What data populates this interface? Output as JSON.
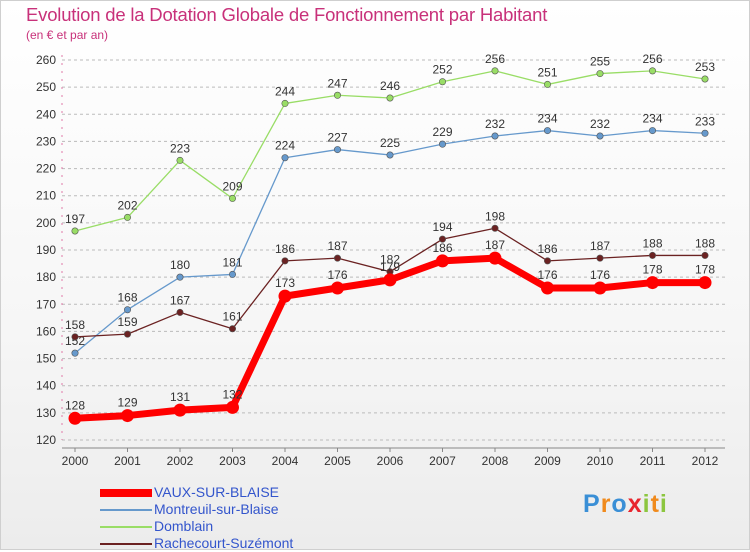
{
  "header": {
    "title": "Evolution de la Dotation Globale de Fonctionnement par Habitant",
    "subtitle": "(en € et par an)"
  },
  "chart_data": {
    "type": "line",
    "title": "Evolution de la Dotation Globale de Fonctionnement par Habitant",
    "subtitle": "(en € et par an)",
    "xlabel": "",
    "ylabel": "",
    "ylim": [
      120,
      260
    ],
    "yticks": [
      120,
      130,
      140,
      150,
      160,
      170,
      180,
      190,
      200,
      210,
      220,
      230,
      240,
      250,
      260
    ],
    "x": [
      "2000",
      "2001",
      "2002",
      "2003",
      "2004",
      "2005",
      "2006",
      "2007",
      "2008",
      "2009",
      "2010",
      "2011",
      "2012"
    ],
    "grid": "horizontal dashed",
    "legend_position": "bottom-left",
    "series": [
      {
        "name": "VAUX-SUR-BLAISE",
        "color": "#ff0000",
        "values": [
          128,
          129,
          131,
          132,
          173,
          176,
          179,
          186,
          187,
          176,
          176,
          178,
          178
        ]
      },
      {
        "name": "Montreuil-sur-Blaise",
        "color": "#6699cc",
        "values": [
          152,
          168,
          180,
          181,
          224,
          227,
          225,
          229,
          232,
          234,
          232,
          234,
          233
        ]
      },
      {
        "name": "Domblain",
        "color": "#99dd66",
        "values": [
          197,
          202,
          223,
          209,
          244,
          247,
          246,
          252,
          256,
          251,
          255,
          256,
          253
        ]
      },
      {
        "name": "Rachecourt-Suzémont",
        "color": "#6b2222",
        "values": [
          158,
          159,
          167,
          161,
          186,
          187,
          182,
          194,
          198,
          186,
          187,
          188,
          188
        ]
      }
    ]
  },
  "legend": {
    "items": [
      {
        "label": "VAUX-SUR-BLAISE",
        "color": "#ff0000"
      },
      {
        "label": "Montreuil-sur-Blaise",
        "color": "#6699cc"
      },
      {
        "label": "Domblain",
        "color": "#99dd66"
      },
      {
        "label": "Rachecourt-Suzémont",
        "color": "#6b2222"
      }
    ]
  },
  "logo": {
    "letters": [
      {
        "ch": "P",
        "color": "#3a8fd6"
      },
      {
        "ch": "r",
        "color": "#f08a1c"
      },
      {
        "ch": "o",
        "color": "#3a8fd6"
      },
      {
        "ch": "x",
        "color": "#e8262e"
      },
      {
        "ch": "i",
        "color": "#8cc63f"
      },
      {
        "ch": "t",
        "color": "#f08a1c"
      },
      {
        "ch": "i",
        "color": "#8cc63f"
      }
    ]
  }
}
